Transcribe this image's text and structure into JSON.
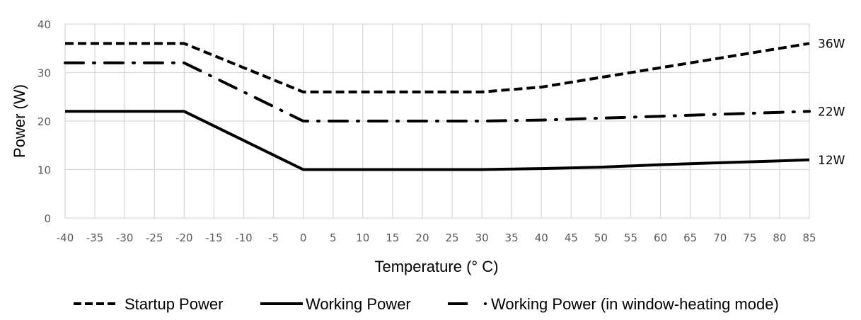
{
  "chart_data": {
    "type": "line",
    "title": "",
    "xlabel": "Temperature (° C)",
    "ylabel": "Power (W)",
    "xlim": [
      -40,
      85
    ],
    "ylim": [
      0,
      40
    ],
    "x_ticks": [
      -40,
      -35,
      -30,
      -25,
      -20,
      -15,
      -10,
      -5,
      0,
      5,
      10,
      15,
      20,
      25,
      30,
      35,
      40,
      45,
      50,
      55,
      60,
      65,
      70,
      75,
      80,
      85
    ],
    "y_ticks": [
      0,
      10,
      20,
      30,
      40
    ],
    "grid": true,
    "legend_position": "bottom",
    "x": [
      -40,
      -20,
      0,
      30,
      40,
      50,
      60,
      70,
      80,
      85
    ],
    "series": [
      {
        "name": "Startup Power",
        "style": "dashed",
        "values": [
          36,
          36,
          26,
          26,
          27,
          29,
          31,
          33,
          35,
          36
        ],
        "end_label": "36W"
      },
      {
        "name": "Working Power",
        "style": "solid",
        "values": [
          22,
          22,
          10,
          10,
          10.2,
          10.5,
          11,
          11.4,
          11.8,
          12
        ],
        "end_label": "12W"
      },
      {
        "name": "Working Power (in window-heating mode)",
        "style": "dash-dot",
        "values": [
          32,
          32,
          20,
          20,
          20.2,
          20.6,
          21,
          21.4,
          21.8,
          22
        ],
        "end_label": "22W"
      }
    ]
  }
}
